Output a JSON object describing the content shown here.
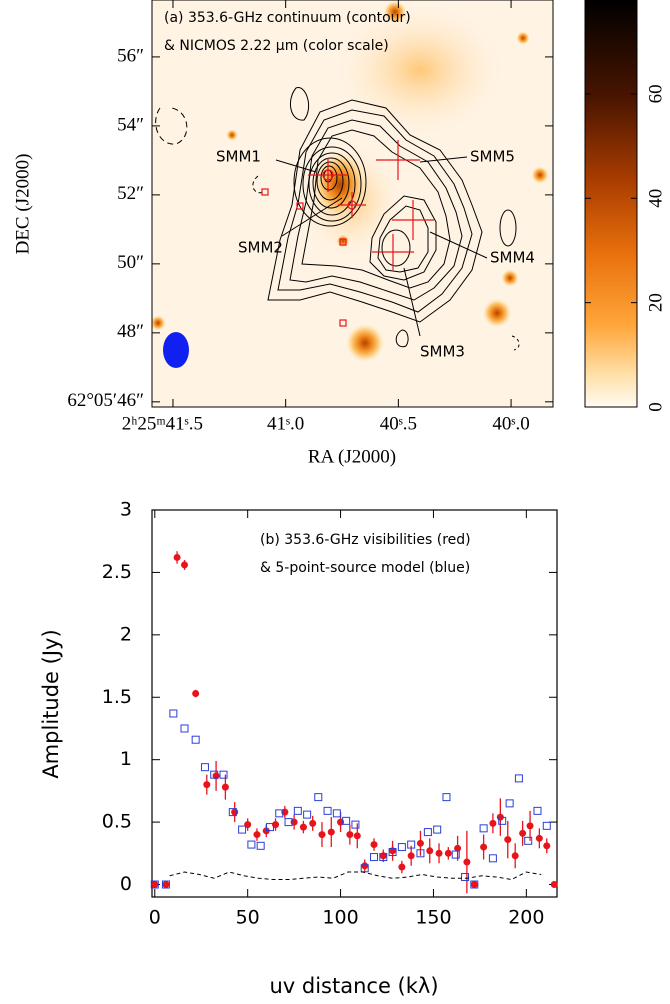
{
  "chart_data": [
    {
      "type": "image",
      "annotation": [
        "(a) 353.6-GHz continuum (contour)",
        "& NICMOS 2.22 μm (color scale)"
      ],
      "xlabel": "RA (J2000)",
      "ylabel": "DEC (J2000)",
      "xlim": [
        41.593,
        39.814
      ],
      "xticks": [
        {
          "value": 41.5,
          "label": "2ʰ25ᵐ41ˢ.5"
        },
        {
          "value": 41.0,
          "label": "41ˢ.0"
        },
        {
          "value": 40.5,
          "label": "40ˢ.5"
        },
        {
          "value": 40.0,
          "label": "40ˢ.0"
        }
      ],
      "ylim": [
        45.85,
        57.65
      ],
      "yticks": [
        {
          "value": 46,
          "label": "62°05′46″"
        },
        {
          "value": 48,
          "label": "48″"
        },
        {
          "value": 50,
          "label": "50″"
        },
        {
          "value": 52,
          "label": "52″"
        },
        {
          "value": 54,
          "label": "54″"
        },
        {
          "value": 56,
          "label": "56″"
        }
      ],
      "sources": [
        "SMM1",
        "SMM2",
        "SMM3",
        "SMM4",
        "SMM5"
      ],
      "colorbar_lim": [
        0,
        78
      ],
      "colorbar_ticks": [
        0,
        20,
        40,
        60
      ]
    },
    {
      "type": "scatter",
      "annotation": [
        "(b) 353.6-GHz visibilities (red)",
        "& 5-point-source model (blue)"
      ],
      "xlabel": "uv distance (kλ)",
      "ylabel": "Amplitude (Jy)",
      "xlim": [
        -1.5,
        216.5
      ],
      "xticks": [
        0,
        50,
        100,
        150,
        200
      ],
      "ylim": [
        -0.1,
        3
      ],
      "yticks": [
        0,
        0.5,
        1,
        1.5,
        2,
        2.5,
        3
      ],
      "series": [
        {
          "color": "#e8141b",
          "marker": "circle",
          "x": [
            0,
            6,
            12,
            16,
            22,
            28,
            33,
            38,
            43,
            50,
            55,
            60,
            65,
            70,
            75,
            80,
            85,
            90,
            95,
            100,
            105,
            109,
            113,
            118,
            123,
            128,
            133,
            138,
            143,
            148,
            153,
            158,
            163,
            168,
            172,
            177,
            182,
            186,
            190,
            194,
            198,
            202,
            207,
            211,
            215
          ],
          "values": [
            0,
            0,
            2.62,
            2.56,
            1.53,
            0.8,
            0.87,
            0.78,
            0.58,
            0.48,
            0.4,
            0.43,
            0.48,
            0.58,
            0.5,
            0.46,
            0.49,
            0.4,
            0.42,
            0.5,
            0.4,
            0.39,
            0.15,
            0.32,
            0.23,
            0.27,
            0.14,
            0.23,
            0.33,
            0.27,
            0.25,
            0.25,
            0.29,
            0.18,
            0,
            0.3,
            0.49,
            0.54,
            0.36,
            0.23,
            0.41,
            0.47,
            0.37,
            0.31,
            0
          ],
          "errors": [
            0,
            0,
            0.05,
            0.04,
            0.03,
            0.08,
            0.12,
            0.1,
            0.08,
            0.05,
            0.05,
            0.05,
            0.05,
            0.05,
            0.06,
            0.05,
            0.06,
            0.1,
            0.12,
            0.08,
            0.08,
            0.1,
            0.05,
            0.05,
            0.05,
            0.08,
            0.05,
            0.08,
            0.1,
            0.1,
            0.08,
            0.05,
            0.1,
            0.25,
            0,
            0.1,
            0.08,
            0.15,
            0.15,
            0.1,
            0.1,
            0.12,
            0.08,
            0.06,
            0
          ]
        },
        {
          "color": "#2a3fd6",
          "marker": "square",
          "x": [
            0,
            6,
            10,
            16,
            22,
            27,
            32,
            37,
            42,
            47,
            52,
            57,
            62,
            67,
            72,
            77,
            82,
            88,
            93,
            98,
            103,
            108,
            113,
            118,
            123,
            128,
            133,
            138,
            143,
            147,
            152,
            157,
            162,
            167,
            172,
            177,
            182,
            187,
            191,
            196,
            201,
            206,
            211
          ],
          "values": [
            0,
            0,
            1.37,
            1.25,
            1.16,
            0.94,
            0.88,
            0.88,
            0.58,
            0.44,
            0.32,
            0.31,
            0.46,
            0.57,
            0.5,
            0.59,
            0.56,
            0.7,
            0.59,
            0.57,
            0.51,
            0.48,
            0.13,
            0.22,
            0.22,
            0.26,
            0.3,
            0.32,
            0.25,
            0.42,
            0.44,
            0.7,
            0.24,
            0.06,
            0,
            0.45,
            0.21,
            0.51,
            0.65,
            0.85,
            0.35,
            0.59,
            0.47
          ]
        },
        {
          "color": "#000000",
          "marker": "dashed",
          "x": [
            8,
            16,
            24,
            32,
            40,
            48,
            56,
            64,
            72,
            80,
            88,
            96,
            104,
            112,
            120,
            128,
            136,
            144,
            152,
            160,
            168,
            176,
            184,
            192,
            200,
            208
          ],
          "values": [
            0.07,
            0.1,
            0.08,
            0.05,
            0.1,
            0.07,
            0.05,
            0.04,
            0.04,
            0.05,
            0.06,
            0.05,
            0.1,
            0.1,
            0.07,
            0.05,
            0.06,
            0.08,
            0.06,
            0.05,
            0.05,
            0.07,
            0.06,
            0.04,
            0.1,
            0.08
          ]
        }
      ]
    }
  ]
}
